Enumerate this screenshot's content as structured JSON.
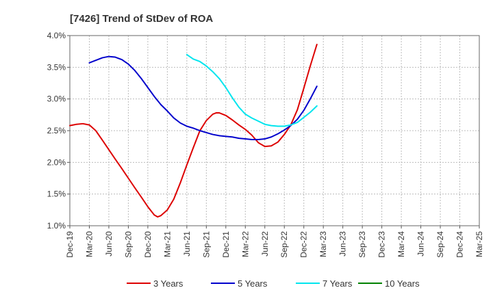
{
  "chart_data": {
    "type": "line",
    "title": "[7426]  Trend of StDev of ROA",
    "xlabel": "",
    "ylabel": "",
    "x_ticks": [
      "Dec-19",
      "Mar-20",
      "Jun-20",
      "Sep-20",
      "Dec-20",
      "Mar-21",
      "Jun-21",
      "Sep-21",
      "Dec-21",
      "Mar-22",
      "Jun-22",
      "Sep-22",
      "Dec-22",
      "Mar-23",
      "Jun-23",
      "Sep-23",
      "Dec-23",
      "Mar-24",
      "Jun-24",
      "Sep-24",
      "Dec-24",
      "Mar-25"
    ],
    "y_ticks": [
      "1.0%",
      "1.5%",
      "2.0%",
      "2.5%",
      "3.0%",
      "3.5%",
      "4.0%"
    ],
    "ylim": [
      1.0,
      4.0
    ],
    "grid": true,
    "legend_position": "bottom",
    "colors": {
      "3 Years": "#dd0000",
      "5 Years": "#0000cc",
      "7 Years": "#00e5ee",
      "10 Years": "#008000"
    },
    "series": [
      {
        "name": "3 Years",
        "color": "#dd0000",
        "points": [
          [
            0,
            2.58
          ],
          [
            0.33,
            2.6
          ],
          [
            0.67,
            2.61
          ],
          [
            1,
            2.59
          ],
          [
            1.33,
            2.5
          ],
          [
            1.67,
            2.35
          ],
          [
            2,
            2.2
          ],
          [
            2.33,
            2.05
          ],
          [
            2.67,
            1.9
          ],
          [
            3,
            1.75
          ],
          [
            3.33,
            1.6
          ],
          [
            3.67,
            1.45
          ],
          [
            4,
            1.3
          ],
          [
            4.33,
            1.17
          ],
          [
            4.5,
            1.14
          ],
          [
            4.67,
            1.16
          ],
          [
            5,
            1.25
          ],
          [
            5.33,
            1.42
          ],
          [
            5.67,
            1.68
          ],
          [
            6,
            1.96
          ],
          [
            6.33,
            2.23
          ],
          [
            6.67,
            2.5
          ],
          [
            7,
            2.66
          ],
          [
            7.33,
            2.76
          ],
          [
            7.5,
            2.78
          ],
          [
            7.67,
            2.78
          ],
          [
            8,
            2.74
          ],
          [
            8.33,
            2.67
          ],
          [
            8.67,
            2.59
          ],
          [
            9,
            2.52
          ],
          [
            9.33,
            2.43
          ],
          [
            9.67,
            2.31
          ],
          [
            10,
            2.25
          ],
          [
            10.33,
            2.26
          ],
          [
            10.67,
            2.32
          ],
          [
            11,
            2.44
          ],
          [
            11.33,
            2.59
          ],
          [
            11.67,
            2.83
          ],
          [
            12,
            3.17
          ],
          [
            12.33,
            3.52
          ],
          [
            12.67,
            3.86
          ]
        ]
      },
      {
        "name": "5 Years",
        "color": "#0000cc",
        "points": [
          [
            1,
            3.57
          ],
          [
            1.33,
            3.61
          ],
          [
            1.67,
            3.65
          ],
          [
            2,
            3.67
          ],
          [
            2.33,
            3.66
          ],
          [
            2.67,
            3.62
          ],
          [
            3,
            3.55
          ],
          [
            3.33,
            3.45
          ],
          [
            3.67,
            3.32
          ],
          [
            4,
            3.18
          ],
          [
            4.33,
            3.04
          ],
          [
            4.67,
            2.91
          ],
          [
            5,
            2.81
          ],
          [
            5.33,
            2.7
          ],
          [
            5.67,
            2.62
          ],
          [
            6,
            2.57
          ],
          [
            6.33,
            2.54
          ],
          [
            6.67,
            2.5
          ],
          [
            7,
            2.47
          ],
          [
            7.33,
            2.44
          ],
          [
            7.67,
            2.42
          ],
          [
            8,
            2.41
          ],
          [
            8.33,
            2.4
          ],
          [
            8.67,
            2.38
          ],
          [
            9,
            2.37
          ],
          [
            9.33,
            2.36
          ],
          [
            9.67,
            2.36
          ],
          [
            10,
            2.37
          ],
          [
            10.33,
            2.4
          ],
          [
            10.67,
            2.45
          ],
          [
            11,
            2.51
          ],
          [
            11.33,
            2.58
          ],
          [
            11.67,
            2.68
          ],
          [
            12,
            2.82
          ],
          [
            12.33,
            3.0
          ],
          [
            12.67,
            3.2
          ]
        ]
      },
      {
        "name": "7 Years",
        "color": "#00e5ee",
        "points": [
          [
            6,
            3.7
          ],
          [
            6.33,
            3.63
          ],
          [
            6.67,
            3.59
          ],
          [
            7,
            3.52
          ],
          [
            7.33,
            3.43
          ],
          [
            7.67,
            3.32
          ],
          [
            8,
            3.18
          ],
          [
            8.33,
            3.02
          ],
          [
            8.67,
            2.87
          ],
          [
            9,
            2.76
          ],
          [
            9.33,
            2.7
          ],
          [
            9.67,
            2.65
          ],
          [
            10,
            2.6
          ],
          [
            10.33,
            2.58
          ],
          [
            10.67,
            2.57
          ],
          [
            11,
            2.57
          ],
          [
            11.33,
            2.59
          ],
          [
            11.67,
            2.63
          ],
          [
            12,
            2.71
          ],
          [
            12.33,
            2.79
          ],
          [
            12.67,
            2.89
          ]
        ]
      },
      {
        "name": "10 Years",
        "color": "#008000",
        "points": []
      }
    ]
  }
}
